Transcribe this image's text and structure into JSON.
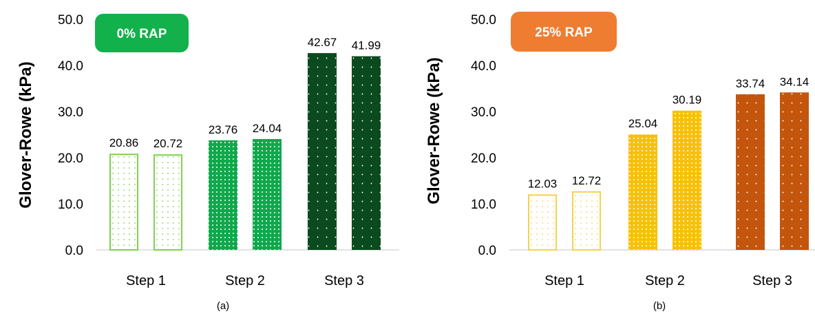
{
  "chart_data": [
    {
      "type": "bar",
      "ylabel": "Glover-Rowe (kPa)",
      "caption": "(a)",
      "badge": {
        "text": "0% RAP",
        "color": "#12b14b"
      },
      "categories": [
        "Step 1",
        "Step 2",
        "Step 3"
      ],
      "ylim": [
        0,
        50
      ],
      "yticks": [
        "0.0",
        "10.0",
        "20.0",
        "30.0",
        "40.0",
        "50.0"
      ],
      "grid": false,
      "values": [
        [
          20.86,
          20.72
        ],
        [
          23.76,
          24.04
        ],
        [
          42.67,
          41.99
        ]
      ],
      "value_labels": [
        [
          "20.86",
          "20.72"
        ],
        [
          "23.76",
          "24.04"
        ],
        [
          "42.67",
          "41.99"
        ]
      ],
      "bar_colors": [
        "#7ed14f",
        "#10a84c",
        "#0a4a1e"
      ],
      "bar_styles": [
        "outline-dotted",
        "dense-dots",
        "solid-dots"
      ]
    },
    {
      "type": "bar",
      "ylabel": "Glover-Rowe (kPa)",
      "caption": "(b)",
      "badge": {
        "text": "25% RAP",
        "color": "#ee7d31"
      },
      "categories": [
        "Step 1",
        "Step 2",
        "Step 3"
      ],
      "ylim": [
        0,
        50
      ],
      "yticks": [
        "0.0",
        "10.0",
        "20.0",
        "30.0",
        "40.0",
        "50.0"
      ],
      "grid": false,
      "values": [
        [
          12.03,
          12.72
        ],
        [
          25.04,
          30.19
        ],
        [
          33.74,
          34.14
        ]
      ],
      "value_labels": [
        [
          "12.03",
          "12.72"
        ],
        [
          "25.04",
          "30.19"
        ],
        [
          "33.74",
          "34.14"
        ]
      ],
      "bar_colors": [
        "#f6d24a",
        "#f7c10a",
        "#c3560c"
      ],
      "bar_styles": [
        "outline-dotted",
        "dense-dots",
        "solid-dots"
      ]
    }
  ]
}
